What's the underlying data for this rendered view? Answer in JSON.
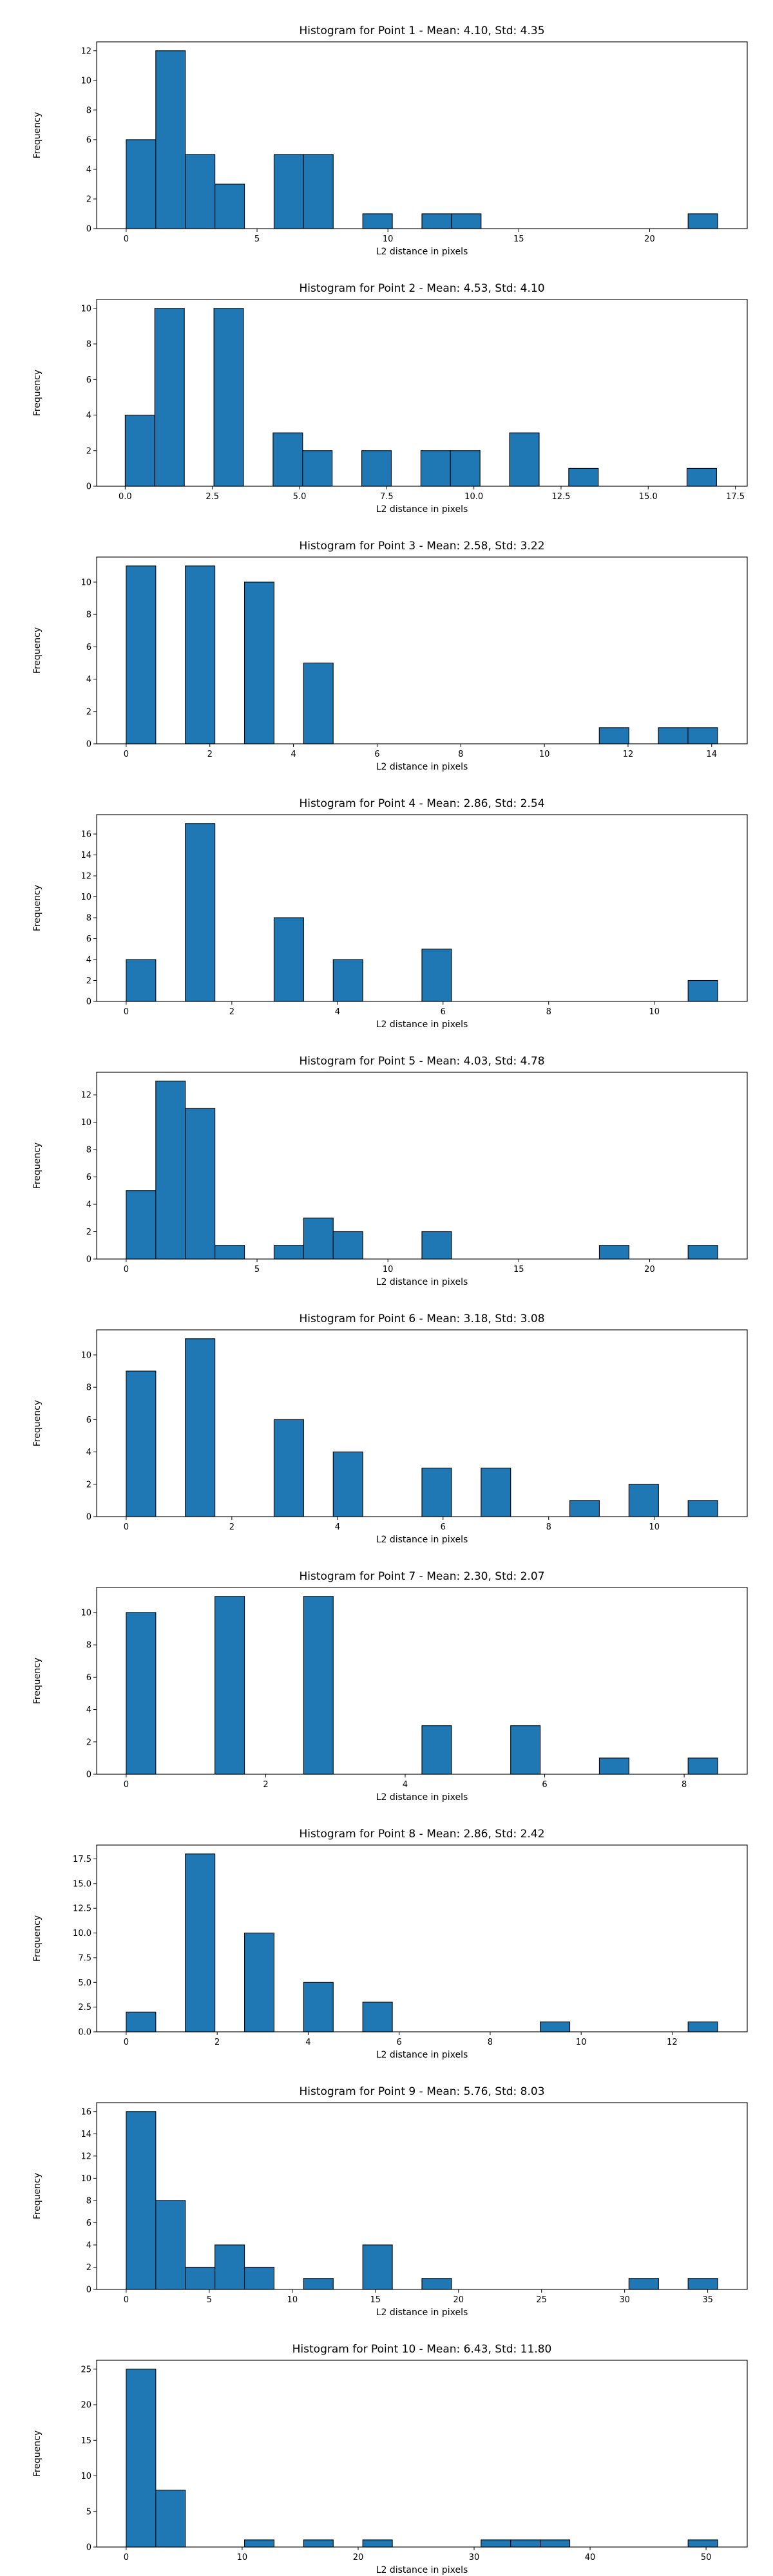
{
  "figure": {
    "background": "#ffffff",
    "bar_color": "#1f77b4",
    "edge_color": "#000000"
  },
  "chart_data": [
    {
      "type": "bar",
      "title": "Histogram for Point 1 - Mean: 4.10, Std: 4.35",
      "xlabel": "L2 distance in pixels",
      "ylabel": "Frequency",
      "xlim": [
        -1.13,
        23.73
      ],
      "ylim": [
        0,
        12.6
      ],
      "xticks": [
        0,
        5,
        10,
        15,
        20
      ],
      "xtick_labels": [
        "0",
        "5",
        "10",
        "15",
        "20"
      ],
      "yticks": [
        0,
        2,
        4,
        6,
        8,
        10,
        12
      ],
      "ytick_labels": [
        "0",
        "2",
        "4",
        "6",
        "8",
        "10",
        "12"
      ],
      "bin_edges": [
        0,
        1.13,
        2.26,
        3.39,
        4.52,
        5.65,
        6.78,
        7.91,
        9.04,
        10.17,
        11.3,
        12.43,
        13.56,
        14.69,
        15.82,
        16.95,
        18.08,
        19.21,
        20.34,
        21.47,
        22.6
      ],
      "values": [
        6,
        12,
        5,
        3,
        0,
        5,
        5,
        0,
        1,
        0,
        1,
        1,
        0,
        0,
        0,
        0,
        0,
        0,
        0,
        1
      ],
      "grid": false
    },
    {
      "type": "bar",
      "title": "Histogram for Point 2 - Mean: 4.53, Std: 4.10",
      "xlabel": "L2 distance in pixels",
      "ylabel": "Frequency",
      "xlim": [
        -0.82,
        17.84
      ],
      "ylim": [
        0,
        10.5
      ],
      "xticks": [
        0,
        2.5,
        5,
        7.5,
        10,
        12.5,
        15,
        17.5
      ],
      "xtick_labels": [
        "0.0",
        "2.5",
        "5.0",
        "7.5",
        "10.0",
        "12.5",
        "15.0",
        "17.5"
      ],
      "yticks": [
        0,
        2,
        4,
        6,
        8,
        10
      ],
      "ytick_labels": [
        "0",
        "2",
        "4",
        "6",
        "8",
        "10"
      ],
      "bin_edges": [
        0,
        0.848,
        1.696,
        2.544,
        3.392,
        4.24,
        5.088,
        5.936,
        6.784,
        7.632,
        8.48,
        9.328,
        10.176,
        11.024,
        11.872,
        12.72,
        13.568,
        14.416,
        15.264,
        16.112,
        16.96
      ],
      "values": [
        4,
        10,
        0,
        10,
        0,
        3,
        2,
        0,
        2,
        0,
        2,
        2,
        0,
        3,
        0,
        1,
        0,
        0,
        0,
        1
      ],
      "grid": false
    },
    {
      "type": "bar",
      "title": "Histogram for Point 3 - Mean: 2.58, Std: 3.22",
      "xlabel": "L2 distance in pixels",
      "ylabel": "Frequency",
      "xlim": [
        -0.707,
        14.85
      ],
      "ylim": [
        0,
        11.55
      ],
      "xticks": [
        0,
        2,
        4,
        6,
        8,
        10,
        12,
        14
      ],
      "xtick_labels": [
        "0",
        "2",
        "4",
        "6",
        "8",
        "10",
        "12",
        "14"
      ],
      "yticks": [
        0,
        2,
        4,
        6,
        8,
        10
      ],
      "ytick_labels": [
        "0",
        "2",
        "4",
        "6",
        "8",
        "10"
      ],
      "bin_edges": [
        0,
        0.707,
        1.414,
        2.121,
        2.828,
        3.535,
        4.242,
        4.949,
        5.656,
        6.363,
        7.07,
        7.777,
        8.484,
        9.191,
        9.898,
        10.605,
        11.312,
        12.019,
        12.726,
        13.433,
        14.14
      ],
      "values": [
        11,
        0,
        11,
        0,
        10,
        0,
        5,
        0,
        0,
        0,
        0,
        0,
        0,
        0,
        0,
        0,
        1,
        0,
        1,
        1
      ],
      "grid": false
    },
    {
      "type": "bar",
      "title": "Histogram for Point 4 - Mean: 2.86, Std: 2.54",
      "xlabel": "L2 distance in pixels",
      "ylabel": "Frequency",
      "xlim": [
        -0.56,
        11.76
      ],
      "ylim": [
        0,
        17.85
      ],
      "xticks": [
        0,
        2,
        4,
        6,
        8,
        10
      ],
      "xtick_labels": [
        "0",
        "2",
        "4",
        "6",
        "8",
        "10"
      ],
      "yticks": [
        0,
        2,
        4,
        6,
        8,
        10,
        12,
        14,
        16
      ],
      "ytick_labels": [
        "0",
        "2",
        "4",
        "6",
        "8",
        "10",
        "12",
        "14",
        "16"
      ],
      "bin_edges": [
        0,
        0.56,
        1.12,
        1.68,
        2.24,
        2.8,
        3.36,
        3.92,
        4.48,
        5.04,
        5.6,
        6.16,
        6.72,
        7.28,
        7.84,
        8.4,
        8.96,
        9.52,
        10.08,
        10.64,
        11.2
      ],
      "values": [
        4,
        0,
        17,
        0,
        0,
        8,
        0,
        4,
        0,
        0,
        5,
        0,
        0,
        0,
        0,
        0,
        0,
        0,
        0,
        2
      ],
      "grid": false
    },
    {
      "type": "bar",
      "title": "Histogram for Point 5 - Mean: 4.03, Std: 4.78",
      "xlabel": "L2 distance in pixels",
      "ylabel": "Frequency",
      "xlim": [
        -1.13,
        23.73
      ],
      "ylim": [
        0,
        13.65
      ],
      "xticks": [
        0,
        5,
        10,
        15,
        20
      ],
      "xtick_labels": [
        "0",
        "5",
        "10",
        "15",
        "20"
      ],
      "yticks": [
        0,
        2,
        4,
        6,
        8,
        10,
        12
      ],
      "ytick_labels": [
        "0",
        "2",
        "4",
        "6",
        "8",
        "10",
        "12"
      ],
      "bin_edges": [
        0,
        1.13,
        2.26,
        3.39,
        4.52,
        5.65,
        6.78,
        7.91,
        9.04,
        10.17,
        11.3,
        12.43,
        13.56,
        14.69,
        15.82,
        16.95,
        18.08,
        19.21,
        20.34,
        21.47,
        22.6
      ],
      "values": [
        5,
        13,
        11,
        1,
        0,
        1,
        3,
        2,
        0,
        0,
        2,
        0,
        0,
        0,
        0,
        0,
        1,
        0,
        0,
        1
      ],
      "grid": false
    },
    {
      "type": "bar",
      "title": "Histogram for Point 6 - Mean: 3.18, Std: 3.08",
      "xlabel": "L2 distance in pixels",
      "ylabel": "Frequency",
      "xlim": [
        -0.56,
        11.76
      ],
      "ylim": [
        0,
        11.55
      ],
      "xticks": [
        0,
        2,
        4,
        6,
        8,
        10
      ],
      "xtick_labels": [
        "0",
        "2",
        "4",
        "6",
        "8",
        "10"
      ],
      "yticks": [
        0,
        2,
        4,
        6,
        8,
        10
      ],
      "ytick_labels": [
        "0",
        "2",
        "4",
        "6",
        "8",
        "10"
      ],
      "bin_edges": [
        0,
        0.56,
        1.12,
        1.68,
        2.24,
        2.8,
        3.36,
        3.92,
        4.48,
        5.04,
        5.6,
        6.16,
        6.72,
        7.28,
        7.84,
        8.4,
        8.96,
        9.52,
        10.08,
        10.64,
        11.2
      ],
      "values": [
        9,
        0,
        11,
        0,
        0,
        6,
        0,
        4,
        0,
        0,
        3,
        0,
        3,
        0,
        0,
        1,
        0,
        2,
        0,
        1
      ],
      "grid": false
    },
    {
      "type": "bar",
      "title": "Histogram for Point 7 - Mean: 2.30, Std: 2.07",
      "xlabel": "L2 distance in pixels",
      "ylabel": "Frequency",
      "xlim": [
        -0.424,
        8.904
      ],
      "ylim": [
        0,
        11.55
      ],
      "xticks": [
        0,
        2,
        4,
        6,
        8
      ],
      "xtick_labels": [
        "0",
        "2",
        "4",
        "6",
        "8"
      ],
      "yticks": [
        0,
        2,
        4,
        6,
        8,
        10
      ],
      "ytick_labels": [
        "0",
        "2",
        "4",
        "6",
        "8",
        "10"
      ],
      "bin_edges": [
        0,
        0.424,
        0.848,
        1.272,
        1.696,
        2.12,
        2.544,
        2.968,
        3.392,
        3.816,
        4.24,
        4.664,
        5.088,
        5.512,
        5.936,
        6.36,
        6.784,
        7.208,
        7.632,
        8.056,
        8.48
      ],
      "values": [
        10,
        0,
        0,
        11,
        0,
        0,
        11,
        0,
        0,
        0,
        3,
        0,
        0,
        3,
        0,
        0,
        1,
        0,
        0,
        1
      ],
      "grid": false
    },
    {
      "type": "bar",
      "title": "Histogram for Point 8 - Mean: 2.86, Std: 2.42",
      "xlabel": "L2 distance in pixels",
      "ylabel": "Frequency",
      "xlim": [
        -0.65,
        13.65
      ],
      "ylim": [
        0,
        18.9
      ],
      "xticks": [
        0,
        2,
        4,
        6,
        8,
        10,
        12
      ],
      "xtick_labels": [
        "0",
        "2",
        "4",
        "6",
        "8",
        "10",
        "12"
      ],
      "yticks": [
        0,
        2.5,
        5,
        7.5,
        10,
        12.5,
        15,
        17.5
      ],
      "ytick_labels": [
        "0.0",
        "2.5",
        "5.0",
        "7.5",
        "10.0",
        "12.5",
        "15.0",
        "17.5"
      ],
      "bin_edges": [
        0,
        0.65,
        1.3,
        1.95,
        2.6,
        3.25,
        3.9,
        4.55,
        5.2,
        5.85,
        6.5,
        7.15,
        7.8,
        8.45,
        9.1,
        9.75,
        10.4,
        11.05,
        11.7,
        12.35,
        13.0
      ],
      "values": [
        2,
        0,
        18,
        0,
        10,
        0,
        5,
        0,
        3,
        0,
        0,
        0,
        0,
        0,
        1,
        0,
        0,
        0,
        0,
        1
      ],
      "grid": false
    },
    {
      "type": "bar",
      "title": "Histogram for Point 9 - Mean: 5.76, Std: 8.03",
      "xlabel": "L2 distance in pixels",
      "ylabel": "Frequency",
      "xlim": [
        -1.78,
        37.38
      ],
      "ylim": [
        0,
        16.8
      ],
      "xticks": [
        0,
        5,
        10,
        15,
        20,
        25,
        30,
        35
      ],
      "xtick_labels": [
        "0",
        "5",
        "10",
        "15",
        "20",
        "25",
        "30",
        "35"
      ],
      "yticks": [
        0,
        2,
        4,
        6,
        8,
        10,
        12,
        14,
        16
      ],
      "ytick_labels": [
        "0",
        "2",
        "4",
        "6",
        "8",
        "10",
        "12",
        "14",
        "16"
      ],
      "bin_edges": [
        0,
        1.78,
        3.56,
        5.34,
        7.12,
        8.9,
        10.68,
        12.46,
        14.24,
        16.02,
        17.8,
        19.58,
        21.36,
        23.14,
        24.92,
        26.7,
        28.48,
        30.26,
        32.04,
        33.82,
        35.6
      ],
      "values": [
        16,
        8,
        2,
        4,
        2,
        0,
        1,
        0,
        4,
        0,
        1,
        0,
        0,
        0,
        0,
        0,
        0,
        1,
        0,
        1
      ],
      "grid": false
    },
    {
      "type": "bar",
      "title": "Histogram for Point 10 - Mean: 6.43, Std: 11.80",
      "xlabel": "L2 distance in pixels",
      "ylabel": "Frequency",
      "xlim": [
        -2.55,
        53.55
      ],
      "ylim": [
        0,
        26.25
      ],
      "xticks": [
        0,
        10,
        20,
        30,
        40,
        50
      ],
      "xtick_labels": [
        "0",
        "10",
        "20",
        "30",
        "40",
        "50"
      ],
      "yticks": [
        0,
        5,
        10,
        15,
        20,
        25
      ],
      "ytick_labels": [
        "0",
        "5",
        "10",
        "15",
        "20",
        "25"
      ],
      "bin_edges": [
        0,
        2.55,
        5.1,
        7.65,
        10.2,
        12.75,
        15.3,
        17.85,
        20.4,
        22.95,
        25.5,
        28.05,
        30.6,
        33.15,
        35.7,
        38.25,
        40.8,
        43.35,
        45.9,
        48.45,
        51.0
      ],
      "values": [
        25,
        8,
        0,
        0,
        1,
        0,
        1,
        0,
        1,
        0,
        0,
        0,
        1,
        1,
        1,
        0,
        0,
        0,
        0,
        1
      ],
      "grid": false
    }
  ]
}
